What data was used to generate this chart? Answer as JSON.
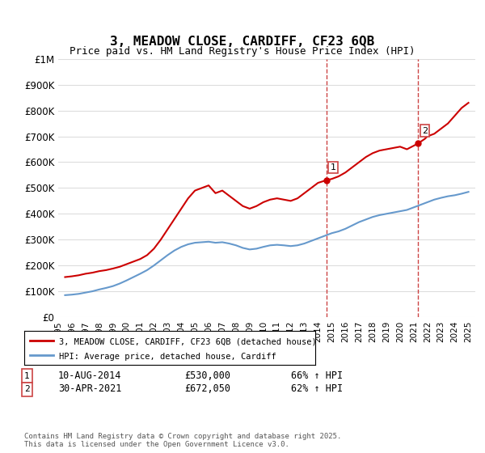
{
  "title": "3, MEADOW CLOSE, CARDIFF, CF23 6QB",
  "subtitle": "Price paid vs. HM Land Registry's House Price Index (HPI)",
  "legend_line1": "3, MEADOW CLOSE, CARDIFF, CF23 6QB (detached house)",
  "legend_line2": "HPI: Average price, detached house, Cardiff",
  "annotation1_label": "1",
  "annotation1_date": "10-AUG-2014",
  "annotation1_price": "£530,000",
  "annotation1_hpi": "66% ↑ HPI",
  "annotation2_label": "2",
  "annotation2_date": "30-APR-2021",
  "annotation2_price": "£672,050",
  "annotation2_hpi": "62% ↑ HPI",
  "footer": "Contains HM Land Registry data © Crown copyright and database right 2025.\nThis data is licensed under the Open Government Licence v3.0.",
  "red_color": "#cc0000",
  "blue_color": "#6699cc",
  "grid_color": "#dddddd",
  "background_color": "#ffffff",
  "vline_color1": "#cc4444",
  "vline_color2": "#cc4444",
  "ylim": [
    0,
    1000000
  ],
  "xlim_start": 1995.0,
  "xlim_end": 2025.5,
  "red_x": [
    1995.5,
    1996.0,
    1996.5,
    1997.0,
    1997.5,
    1998.0,
    1998.5,
    1999.0,
    1999.5,
    2000.0,
    2000.5,
    2001.0,
    2001.5,
    2002.0,
    2002.5,
    2003.0,
    2003.5,
    2004.0,
    2004.5,
    2005.0,
    2005.5,
    2006.0,
    2006.5,
    2007.0,
    2007.5,
    2008.0,
    2008.5,
    2009.0,
    2009.5,
    2010.0,
    2010.5,
    2011.0,
    2011.5,
    2012.0,
    2012.5,
    2013.0,
    2013.5,
    2014.0,
    2014.6,
    2015.0,
    2015.5,
    2016.0,
    2016.5,
    2017.0,
    2017.5,
    2018.0,
    2018.5,
    2019.0,
    2019.5,
    2020.0,
    2020.5,
    2021.3,
    2021.8,
    2022.0,
    2022.5,
    2023.0,
    2023.5,
    2024.0,
    2024.5,
    2025.0
  ],
  "red_y": [
    155000,
    158000,
    162000,
    168000,
    172000,
    178000,
    182000,
    188000,
    195000,
    205000,
    215000,
    225000,
    240000,
    265000,
    300000,
    340000,
    380000,
    420000,
    460000,
    490000,
    500000,
    510000,
    480000,
    490000,
    470000,
    450000,
    430000,
    420000,
    430000,
    445000,
    455000,
    460000,
    455000,
    450000,
    460000,
    480000,
    500000,
    520000,
    530000,
    535000,
    545000,
    560000,
    580000,
    600000,
    620000,
    635000,
    645000,
    650000,
    655000,
    660000,
    650000,
    672050,
    690000,
    700000,
    710000,
    730000,
    750000,
    780000,
    810000,
    830000
  ],
  "blue_x": [
    1995.5,
    1996.0,
    1996.5,
    1997.0,
    1997.5,
    1998.0,
    1998.5,
    1999.0,
    1999.5,
    2000.0,
    2000.5,
    2001.0,
    2001.5,
    2002.0,
    2002.5,
    2003.0,
    2003.5,
    2004.0,
    2004.5,
    2005.0,
    2005.5,
    2006.0,
    2006.5,
    2007.0,
    2007.5,
    2008.0,
    2008.5,
    2009.0,
    2009.5,
    2010.0,
    2010.5,
    2011.0,
    2011.5,
    2012.0,
    2012.5,
    2013.0,
    2013.5,
    2014.0,
    2014.5,
    2015.0,
    2015.5,
    2016.0,
    2016.5,
    2017.0,
    2017.5,
    2018.0,
    2018.5,
    2019.0,
    2019.5,
    2020.0,
    2020.5,
    2021.0,
    2021.5,
    2022.0,
    2022.5,
    2023.0,
    2023.5,
    2024.0,
    2024.5,
    2025.0
  ],
  "blue_y": [
    85000,
    87000,
    90000,
    95000,
    100000,
    107000,
    113000,
    120000,
    130000,
    142000,
    155000,
    168000,
    182000,
    200000,
    220000,
    240000,
    258000,
    272000,
    282000,
    288000,
    290000,
    292000,
    288000,
    290000,
    285000,
    278000,
    268000,
    262000,
    265000,
    272000,
    278000,
    280000,
    278000,
    275000,
    278000,
    285000,
    295000,
    305000,
    315000,
    325000,
    332000,
    342000,
    355000,
    368000,
    378000,
    388000,
    395000,
    400000,
    405000,
    410000,
    415000,
    425000,
    435000,
    445000,
    455000,
    462000,
    468000,
    472000,
    478000,
    485000
  ],
  "vline1_x": 2014.6,
  "vline2_x": 2021.3,
  "point1_x": 2014.6,
  "point1_y": 530000,
  "point2_x": 2021.3,
  "point2_y": 672050
}
